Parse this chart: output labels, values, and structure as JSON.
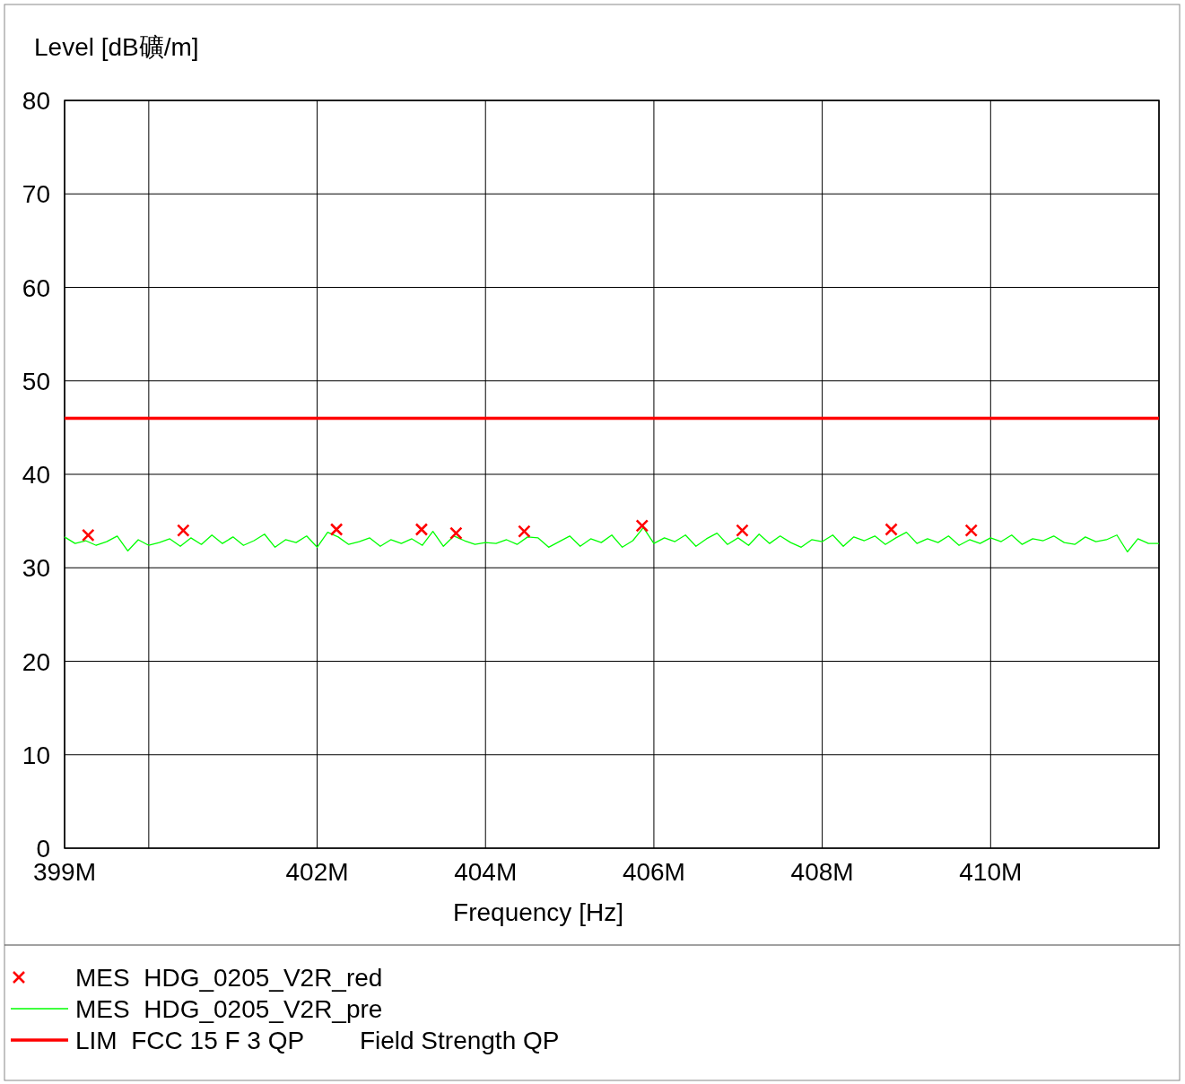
{
  "chart_data": {
    "type": "line",
    "ylabel": "Level [dB礦/m]",
    "xlabel": "Frequency [Hz]",
    "xlim": [
      399,
      412
    ],
    "ylim": [
      0,
      80
    ],
    "xticks": [
      {
        "value": 399,
        "label": "399M"
      },
      {
        "value": 400,
        "label": null
      },
      {
        "value": 402,
        "label": "402M"
      },
      {
        "value": 404,
        "label": "404M"
      },
      {
        "value": 406,
        "label": "406M"
      },
      {
        "value": 408,
        "label": "408M"
      },
      {
        "value": 410,
        "label": "410M"
      },
      {
        "value": 412,
        "label": null
      }
    ],
    "yticks": [
      0,
      10,
      20,
      30,
      40,
      50,
      60,
      70,
      80
    ],
    "grid": true,
    "legend": "bottom",
    "x": [
      399,
      399.125,
      399.25,
      399.375,
      399.5,
      399.625,
      399.75,
      399.875,
      400,
      400.125,
      400.25,
      400.375,
      400.5,
      400.625,
      400.75,
      400.875,
      401,
      401.125,
      401.25,
      401.375,
      401.5,
      401.625,
      401.75,
      401.875,
      402,
      402.125,
      402.25,
      402.375,
      402.5,
      402.625,
      402.75,
      402.875,
      403,
      403.125,
      403.25,
      403.375,
      403.5,
      403.625,
      403.75,
      403.875,
      404,
      404.125,
      404.25,
      404.375,
      404.5,
      404.625,
      404.75,
      404.875,
      405,
      405.125,
      405.25,
      405.375,
      405.5,
      405.625,
      405.75,
      405.875,
      406,
      406.125,
      406.25,
      406.375,
      406.5,
      406.625,
      406.75,
      406.875,
      407,
      407.125,
      407.25,
      407.375,
      407.5,
      407.625,
      407.75,
      407.875,
      408,
      408.125,
      408.25,
      408.375,
      408.5,
      408.625,
      408.75,
      408.875,
      409,
      409.125,
      409.25,
      409.375,
      409.5,
      409.625,
      409.75,
      409.875,
      410,
      410.125,
      410.25,
      410.375,
      410.5,
      410.625,
      410.75,
      410.875,
      411,
      411.125,
      411.25,
      411.375,
      411.5,
      411.625,
      411.75,
      411.875,
      412
    ],
    "series": [
      {
        "name": "MES  HDG_0205_V2R_red",
        "type": "scatter",
        "marker": "cross",
        "color": "#ff0000",
        "x": [
          399.28,
          400.41,
          402.23,
          403.24,
          403.65,
          404.46,
          405.86,
          407.05,
          408.82,
          409.77
        ],
        "values": [
          33.5,
          34.0,
          34.1,
          34.1,
          33.7,
          33.9,
          34.5,
          34.0,
          34.1,
          34.0
        ]
      },
      {
        "name": "MES  HDG_0205_V2R_pre",
        "marker": "none",
        "color": "#00ff00",
        "values": [
          33.3,
          32.6,
          32.9,
          32.4,
          32.8,
          33.4,
          31.8,
          33.0,
          32.4,
          32.7,
          33.1,
          32.3,
          33.2,
          32.5,
          33.5,
          32.6,
          33.3,
          32.4,
          32.9,
          33.6,
          32.2,
          33.0,
          32.7,
          33.4,
          32.2,
          33.8,
          33.3,
          32.5,
          32.8,
          33.2,
          32.3,
          33.0,
          32.6,
          33.1,
          32.4,
          33.9,
          32.3,
          33.4,
          32.9,
          32.5,
          32.7,
          32.6,
          33.0,
          32.5,
          33.3,
          33.2,
          32.2,
          32.8,
          33.4,
          32.3,
          33.1,
          32.7,
          33.5,
          32.2,
          32.9,
          34.3,
          32.6,
          33.2,
          32.8,
          33.5,
          32.3,
          33.1,
          33.7,
          32.5,
          33.2,
          32.4,
          33.6,
          32.6,
          33.4,
          32.7,
          32.2,
          33.0,
          32.8,
          33.5,
          32.3,
          33.3,
          32.9,
          33.4,
          32.5,
          33.2,
          33.8,
          32.6,
          33.1,
          32.7,
          33.4,
          32.4,
          33.0,
          32.6,
          33.2,
          32.8,
          33.5,
          32.5,
          33.1,
          32.9,
          33.4,
          32.7,
          32.5,
          33.3,
          32.8,
          33.0,
          33.5,
          31.7,
          33.1,
          32.6,
          32.6
        ]
      },
      {
        "name": "LIM  FCC 15 F 3 QP        Field Strength QP",
        "marker": "none",
        "color": "#ff0000",
        "x": [
          399,
          412
        ],
        "values": [
          46,
          46
        ]
      }
    ]
  }
}
